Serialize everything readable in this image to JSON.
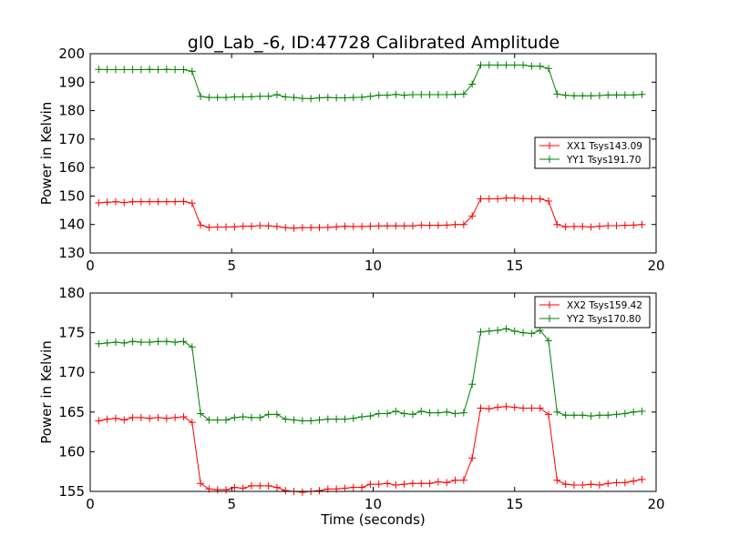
{
  "title": "gl0_Lab_-6, ID:47728 Calibrated Amplitude",
  "chart_data": [
    {
      "type": "line",
      "title": "gl0_Lab_-6, ID:47728 Calibrated Amplitude",
      "xlabel": "",
      "ylabel": "Power in Kelvin",
      "xlim": [
        0,
        20
      ],
      "ylim": [
        130,
        200
      ],
      "xticks": [
        0,
        5,
        10,
        15,
        20
      ],
      "yticks": [
        130,
        140,
        150,
        160,
        170,
        180,
        190,
        200
      ],
      "grid": false,
      "legend_position": "center-right",
      "x": [
        0.3,
        0.6,
        0.9,
        1.2,
        1.5,
        1.8,
        2.1,
        2.4,
        2.7,
        3.0,
        3.3,
        3.6,
        3.9,
        4.2,
        4.5,
        4.8,
        5.1,
        5.4,
        5.7,
        6.0,
        6.3,
        6.6,
        6.9,
        7.2,
        7.5,
        7.8,
        8.1,
        8.4,
        8.7,
        9.0,
        9.3,
        9.6,
        9.9,
        10.2,
        10.5,
        10.8,
        11.1,
        11.4,
        11.7,
        12.0,
        12.3,
        12.6,
        12.9,
        13.2,
        13.5,
        13.8,
        14.1,
        14.4,
        14.7,
        15.0,
        15.3,
        15.6,
        15.9,
        16.2,
        16.5,
        16.8,
        17.1,
        17.4,
        17.7,
        18.0,
        18.3,
        18.6,
        18.9,
        19.2,
        19.5
      ],
      "series": [
        {
          "name": "XX1 Tsys143.09",
          "color": "#ff0000",
          "values": [
            147.6,
            147.8,
            148.0,
            147.7,
            148.0,
            148.0,
            148.0,
            148.0,
            148.0,
            148.0,
            148.1,
            147.5,
            139.8,
            139.0,
            139.1,
            139.1,
            139.2,
            139.4,
            139.4,
            139.6,
            139.5,
            139.3,
            138.9,
            138.7,
            138.9,
            138.9,
            138.9,
            139.0,
            139.2,
            139.4,
            139.3,
            139.3,
            139.4,
            139.5,
            139.5,
            139.5,
            139.5,
            139.5,
            139.8,
            139.7,
            139.7,
            139.8,
            140.0,
            140.0,
            143.0,
            149.0,
            149.0,
            149.0,
            149.3,
            149.3,
            149.1,
            149.0,
            149.0,
            148.2,
            140.0,
            139.2,
            139.3,
            139.3,
            139.1,
            139.4,
            139.6,
            139.6,
            139.7,
            139.8,
            140.0
          ]
        },
        {
          "name": "YY1 Tsys191.70",
          "color": "#008000",
          "values": [
            194.5,
            194.4,
            194.4,
            194.4,
            194.4,
            194.4,
            194.5,
            194.4,
            194.5,
            194.4,
            194.4,
            193.8,
            185.0,
            184.6,
            184.6,
            184.6,
            184.8,
            184.8,
            184.9,
            185.0,
            185.0,
            185.6,
            184.8,
            184.6,
            184.3,
            184.2,
            184.5,
            184.6,
            184.5,
            184.5,
            184.6,
            184.7,
            185.0,
            185.4,
            185.4,
            185.7,
            185.4,
            185.6,
            185.6,
            185.6,
            185.6,
            185.6,
            185.7,
            185.8,
            189.3,
            196.0,
            196.0,
            196.0,
            196.0,
            196.0,
            196.0,
            195.6,
            195.6,
            194.8,
            185.8,
            185.4,
            185.2,
            185.2,
            185.2,
            185.3,
            185.5,
            185.5,
            185.5,
            185.5,
            185.7
          ]
        }
      ]
    },
    {
      "type": "line",
      "title": "",
      "xlabel": "Time (seconds)",
      "ylabel": "Power in Kelvin",
      "xlim": [
        0,
        20
      ],
      "ylim": [
        155,
        180
      ],
      "xticks": [
        0,
        5,
        10,
        15,
        20
      ],
      "yticks": [
        155,
        160,
        165,
        170,
        175,
        180
      ],
      "grid": false,
      "legend_position": "top-right",
      "x": [
        0.3,
        0.6,
        0.9,
        1.2,
        1.5,
        1.8,
        2.1,
        2.4,
        2.7,
        3.0,
        3.3,
        3.6,
        3.9,
        4.2,
        4.5,
        4.8,
        5.1,
        5.4,
        5.7,
        6.0,
        6.3,
        6.6,
        6.9,
        7.2,
        7.5,
        7.8,
        8.1,
        8.4,
        8.7,
        9.0,
        9.3,
        9.6,
        9.9,
        10.2,
        10.5,
        10.8,
        11.1,
        11.4,
        11.7,
        12.0,
        12.3,
        12.6,
        12.9,
        13.2,
        13.5,
        13.8,
        14.1,
        14.4,
        14.7,
        15.0,
        15.3,
        15.6,
        15.9,
        16.2,
        16.5,
        16.8,
        17.1,
        17.4,
        17.7,
        18.0,
        18.3,
        18.6,
        18.9,
        19.2,
        19.5
      ],
      "series": [
        {
          "name": "XX2 Tsys159.42",
          "color": "#ff0000",
          "values": [
            163.9,
            164.1,
            164.2,
            164.0,
            164.3,
            164.3,
            164.2,
            164.3,
            164.2,
            164.3,
            164.4,
            163.7,
            156.0,
            155.3,
            155.2,
            155.2,
            155.5,
            155.4,
            155.7,
            155.7,
            155.7,
            155.5,
            155.1,
            155.0,
            154.9,
            155.0,
            155.1,
            155.3,
            155.3,
            155.4,
            155.5,
            155.5,
            155.9,
            155.9,
            156.0,
            155.8,
            155.9,
            156.0,
            156.0,
            156.0,
            156.2,
            156.1,
            156.4,
            156.4,
            159.2,
            165.5,
            165.4,
            165.6,
            165.7,
            165.6,
            165.5,
            165.5,
            165.5,
            164.7,
            156.4,
            155.9,
            155.8,
            155.8,
            155.9,
            155.8,
            156.0,
            156.1,
            156.1,
            156.3,
            156.5
          ]
        },
        {
          "name": "YY2 Tsys170.80",
          "color": "#008000",
          "values": [
            173.6,
            173.7,
            173.8,
            173.7,
            173.9,
            173.8,
            173.8,
            173.9,
            173.9,
            173.8,
            173.9,
            173.2,
            164.8,
            164.0,
            164.0,
            164.0,
            164.3,
            164.4,
            164.3,
            164.3,
            164.7,
            164.7,
            164.1,
            164.0,
            163.9,
            163.9,
            164.0,
            164.1,
            164.1,
            164.1,
            164.2,
            164.4,
            164.5,
            164.8,
            164.8,
            165.1,
            164.8,
            164.7,
            165.1,
            164.9,
            164.9,
            165.0,
            164.8,
            164.9,
            168.5,
            175.1,
            175.2,
            175.3,
            175.5,
            175.2,
            175.0,
            174.9,
            175.3,
            174.0,
            165.0,
            164.6,
            164.6,
            164.6,
            164.5,
            164.6,
            164.6,
            164.7,
            164.8,
            165.0,
            165.1
          ]
        }
      ]
    }
  ]
}
